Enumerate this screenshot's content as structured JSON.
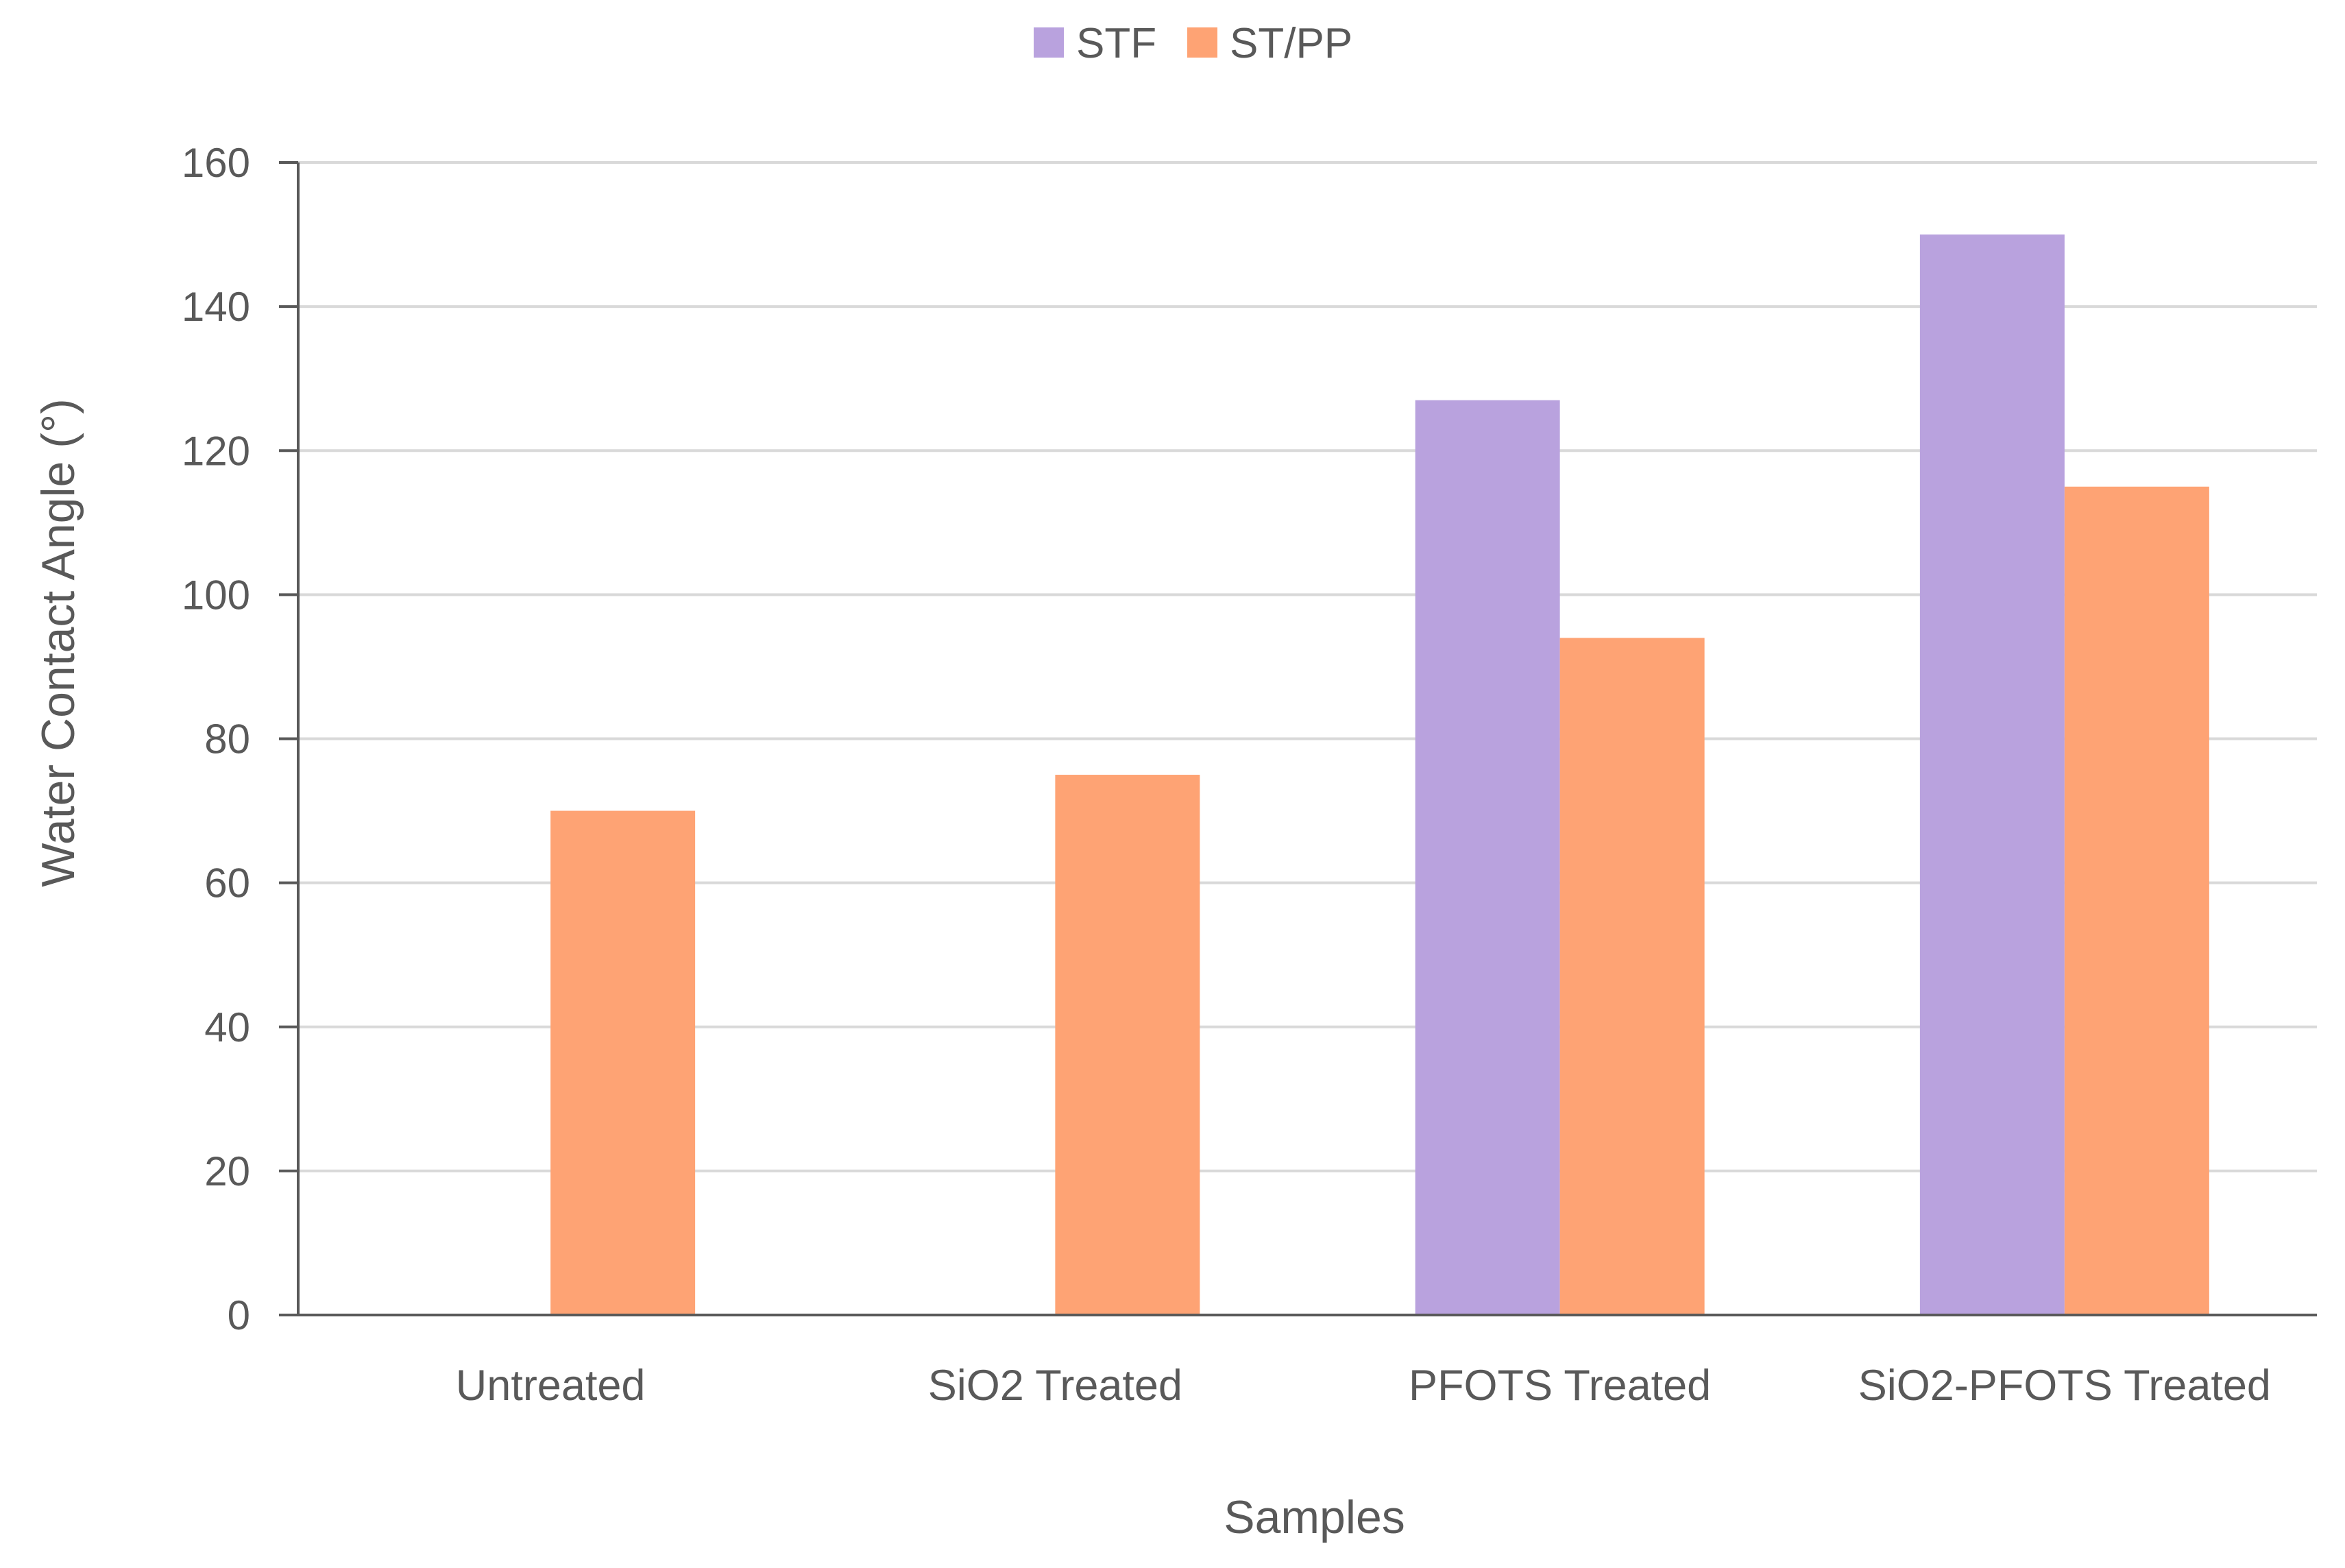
{
  "chart_data": {
    "type": "bar",
    "title": "",
    "xlabel": "Samples",
    "ylabel": "Water Contact Angle (°)",
    "ylim": [
      0,
      160
    ],
    "yticks": [
      0,
      20,
      40,
      60,
      80,
      100,
      120,
      140,
      160
    ],
    "grid": true,
    "legend_position": "top-center",
    "categories": [
      "Untreated",
      "SiO2 Treated",
      "PFOTS Treated",
      "SiO2-PFOTS Treated"
    ],
    "series": [
      {
        "name": "STF",
        "color": "#b9a2de",
        "values": [
          0,
          0,
          127,
          150
        ]
      },
      {
        "name": "ST/PP",
        "color": "#fea374",
        "values": [
          70,
          75,
          94,
          115
        ]
      }
    ]
  },
  "colors": {
    "gridline": "#d9d9d9",
    "axis": "#595959",
    "text": "#595959"
  }
}
